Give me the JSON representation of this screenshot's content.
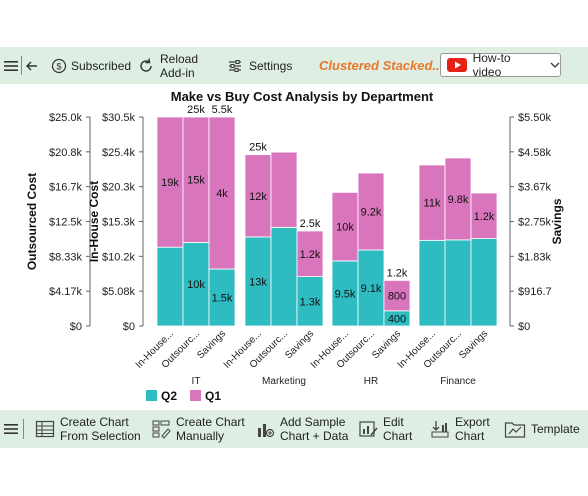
{
  "top_toolbar": {
    "subscribed_label": "Subscribed",
    "reload_label_1": "Reload",
    "reload_label_2": "Add-in",
    "settings_label": "Settings",
    "chart_type_label": "Clustered Stacked...",
    "howto_label": "How-to video"
  },
  "bottom_toolbar": {
    "create_selection_1": "Create Chart",
    "create_selection_2": "From Selection",
    "create_manual_1": "Create Chart",
    "create_manual_2": "Manually",
    "add_sample_1": "Add Sample",
    "add_sample_2": "Chart + Data",
    "edit_1": "Edit",
    "edit_2": "Chart",
    "export_1": "Export",
    "export_2": "Chart",
    "template": "Template"
  },
  "colors": {
    "q1": "#d975bd",
    "q2": "#2fbcc1",
    "accent": "#e8782a",
    "toolbar_bg": "#dfeee3"
  },
  "chart_data": {
    "type": "bar",
    "title": "Make vs Buy Cost Analysis by Department",
    "axes": {
      "outsourced": {
        "label": "Outsourced Cost",
        "ticks": [
          "$25.0k",
          "$20.8k",
          "$16.7k",
          "$12.5k",
          "$8.33k",
          "$4.17k",
          "$0"
        ],
        "ylim": [
          0,
          25000
        ]
      },
      "inhouse": {
        "label": "In-House Cost",
        "ticks": [
          "$30.5k",
          "$25.4k",
          "$20.3k",
          "$15.3k",
          "$10.2k",
          "$5.08k",
          "$0"
        ],
        "ylim": [
          0,
          30500
        ]
      },
      "savings": {
        "label": "Savings",
        "ticks": [
          "$5.50k",
          "$4.58k",
          "$3.67k",
          "$2.75k",
          "$1.83k",
          "$916.7",
          "$0"
        ],
        "ylim": [
          0,
          5500
        ]
      }
    },
    "legend": [
      {
        "name": "Q2",
        "color": "#2fbcc1"
      },
      {
        "name": "Q1",
        "color": "#d975bd"
      }
    ],
    "groups": [
      {
        "name": "IT",
        "bars": [
          {
            "category": "In-House...",
            "axis": "inhouse",
            "q2": 11500,
            "q1": 19000,
            "q1_label": "19k",
            "q2_label": "",
            "total_label": ""
          },
          {
            "category": "Outsourc...",
            "axis": "outsourced",
            "q2": 10000,
            "q1": 15000,
            "q1_label": "15k",
            "q2_label": "10k",
            "total_label": "25k"
          },
          {
            "category": "Savings",
            "axis": "savings",
            "q2": 1500,
            "q1": 4000,
            "q1_label": "4k",
            "q2_label": "1.5k",
            "total_label": "5.5k"
          }
        ]
      },
      {
        "name": "Marketing",
        "bars": [
          {
            "category": "In-House...",
            "axis": "inhouse",
            "q2": 13000,
            "q1": 12000,
            "q1_label": "12k",
            "q2_label": "13k",
            "total_label": "25k"
          },
          {
            "category": "Outsourc...",
            "axis": "outsourced",
            "q2": 11800,
            "q1": 9000,
            "q1_label": "",
            "q2_label": "",
            "total_label": ""
          },
          {
            "category": "Savings",
            "axis": "savings",
            "q2": 1300,
            "q1": 1200,
            "q1_label": "1.2k",
            "q2_label": "1.3k",
            "total_label": "2.5k"
          }
        ]
      },
      {
        "name": "HR",
        "bars": [
          {
            "category": "In-House...",
            "axis": "inhouse",
            "q2": 9500,
            "q1": 10000,
            "q1_label": "10k",
            "q2_label": "9.5k",
            "total_label": ""
          },
          {
            "category": "Outsourc...",
            "axis": "outsourced",
            "q2": 9100,
            "q1": 9200,
            "q1_label": "9.2k",
            "q2_label": "9.1k",
            "total_label": ""
          },
          {
            "category": "Savings",
            "axis": "savings",
            "q2": 400,
            "q1": 800,
            "q1_label": "800",
            "q2_label": "400",
            "total_label": "1.2k"
          }
        ]
      },
      {
        "name": "Finance",
        "bars": [
          {
            "category": "In-House...",
            "axis": "inhouse",
            "q2": 12500,
            "q1": 11000,
            "q1_label": "11k",
            "q2_label": "",
            "total_label": ""
          },
          {
            "category": "Outsourc...",
            "axis": "outsourced",
            "q2": 10300,
            "q1": 9800,
            "q1_label": "9.8k",
            "q2_label": "",
            "total_label": ""
          },
          {
            "category": "Savings",
            "axis": "savings",
            "q2": 2300,
            "q1": 1200,
            "q1_label": "1.2k",
            "q2_label": "",
            "total_label": ""
          }
        ]
      }
    ]
  }
}
